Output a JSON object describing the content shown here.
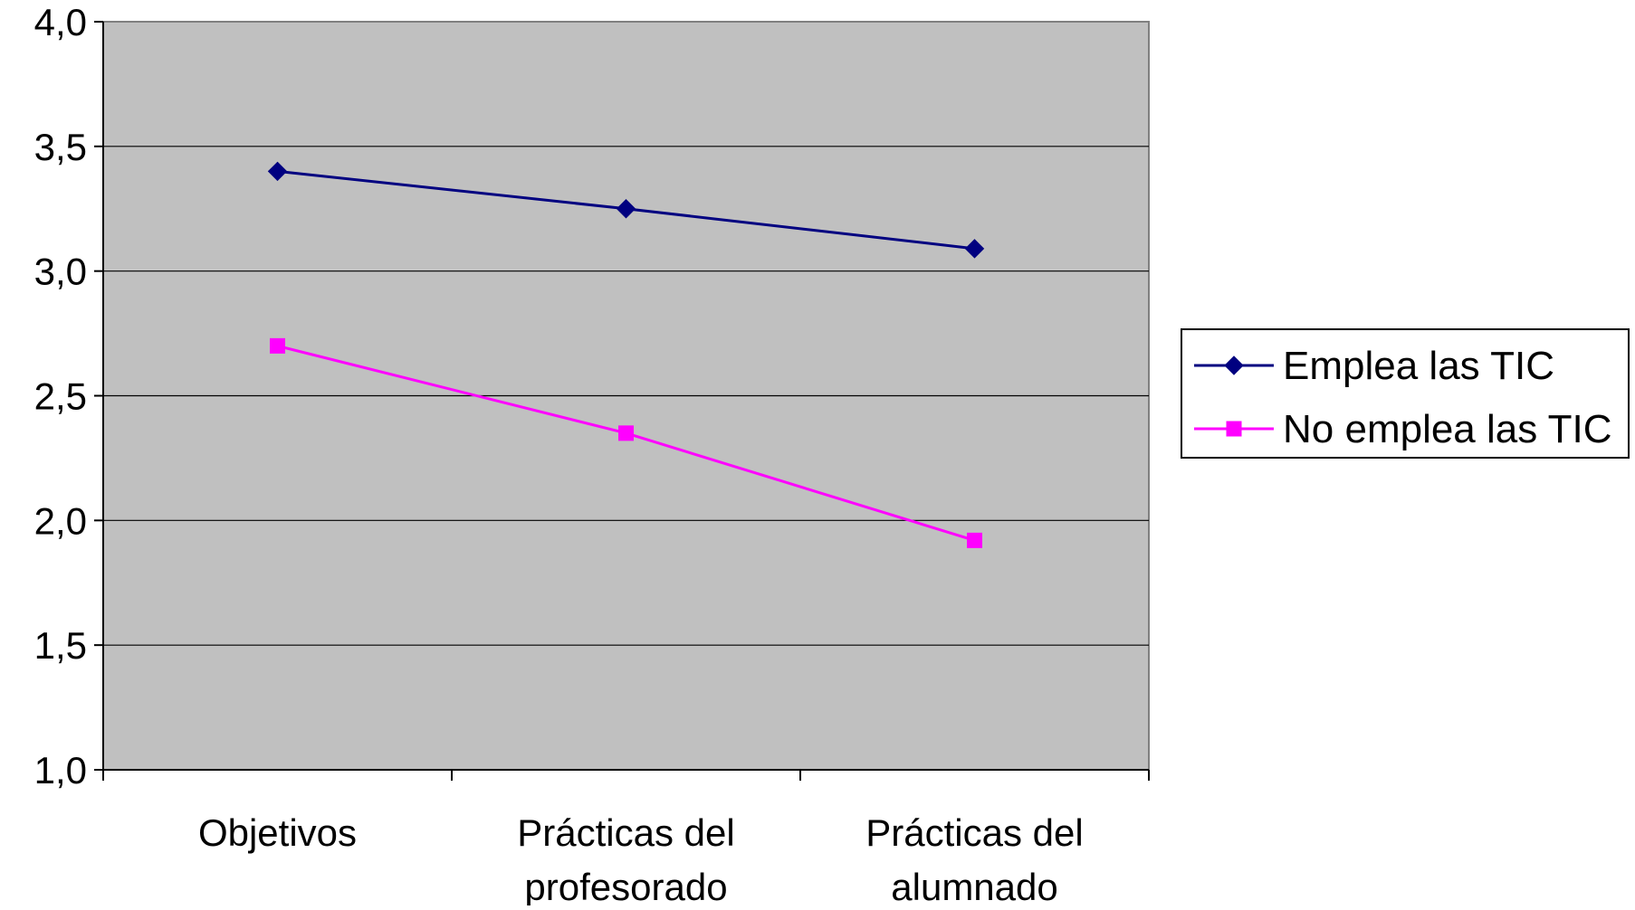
{
  "chart_data": {
    "type": "line",
    "title": "",
    "xlabel": "",
    "ylabel": "",
    "categories": [
      [
        "Objetivos"
      ],
      [
        "Prácticas del",
        "profesorado"
      ],
      [
        "Prácticas del",
        "alumnado"
      ]
    ],
    "series": [
      {
        "name": "Emplea las TIC",
        "values": [
          3.4,
          3.25,
          3.09
        ],
        "color": "#000080",
        "marker": "diamond"
      },
      {
        "name": "No emplea las TIC",
        "values": [
          2.7,
          2.35,
          1.92
        ],
        "color": "#FF00FF",
        "marker": "square"
      }
    ],
    "ylim": [
      1.0,
      4.0
    ],
    "yticks": [
      1.0,
      1.5,
      2.0,
      2.5,
      3.0,
      3.5,
      4.0
    ],
    "ytick_labels": [
      "1,0",
      "1,5",
      "2,0",
      "2,5",
      "3,0",
      "3,5",
      "4,0"
    ],
    "grid": true,
    "plot_background": "#C0C0C0",
    "legend_position": "right"
  }
}
